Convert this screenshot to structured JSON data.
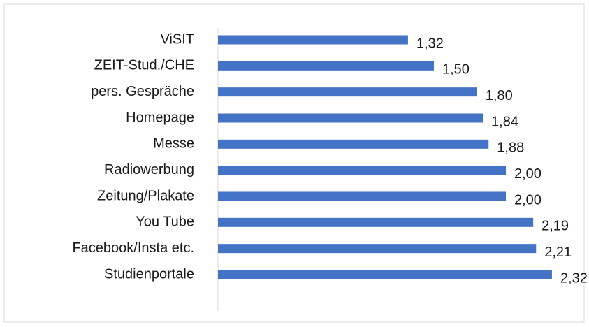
{
  "chart_data": {
    "type": "bar",
    "orientation": "horizontal",
    "categories": [
      "ViSIT",
      "ZEIT-Stud./CHE",
      "pers. Gespräche",
      "Homepage",
      "Messe",
      "Radiowerbung",
      "Zeitung/Plakate",
      "You Tube",
      "Facebook/Insta etc.",
      "Studienportale"
    ],
    "values": [
      1.32,
      1.5,
      1.8,
      1.84,
      1.88,
      2.0,
      2.0,
      2.19,
      2.21,
      2.32
    ],
    "value_labels": [
      "1,32",
      "1,50",
      "1,80",
      "1,84",
      "1,88",
      "2,00",
      "2,00",
      "2,19",
      "2,21",
      "2,32"
    ],
    "color": "#4472c4"
  }
}
